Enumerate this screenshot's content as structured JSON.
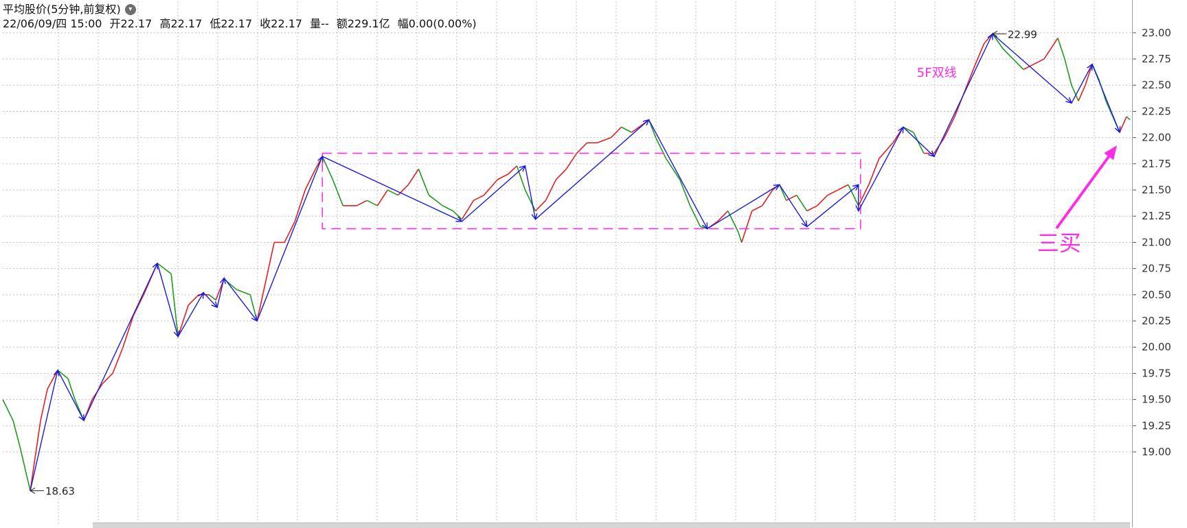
{
  "header": {
    "title": "平均股价(5分钟,前复权)",
    "date": "22/06/09/四 15:00",
    "open": "开22.17",
    "high": "高22.17",
    "low": "低22.17",
    "close": "收22.17",
    "volume": "量--",
    "amount": "额229.1亿",
    "change": "幅0.00(0.00%)"
  },
  "colors": {
    "up": "#e02020",
    "down": "#1e9a1e",
    "stroke": "#1a1adf",
    "annotation": "#ff2ce6",
    "grid": "#bdbdbd"
  },
  "chart_data": {
    "type": "line",
    "ylim": [
      18.3,
      23.3
    ],
    "xlim": [
      0,
      1640
    ],
    "y_ticks": [
      19.0,
      19.25,
      19.5,
      19.75,
      20.0,
      20.25,
      20.5,
      20.75,
      21.0,
      21.25,
      21.5,
      21.75,
      22.0,
      22.25,
      22.5,
      22.75,
      23.0
    ],
    "grid": true,
    "series": [
      {
        "points": [
          [
            0,
            19.5
          ],
          [
            15,
            19.3
          ],
          [
            25,
            19.05
          ],
          [
            40,
            18.63
          ],
          [
            55,
            19.3
          ],
          [
            65,
            19.6
          ],
          [
            80,
            19.78
          ],
          [
            95,
            19.7
          ],
          [
            105,
            19.5
          ],
          [
            118,
            19.3
          ],
          [
            130,
            19.5
          ],
          [
            145,
            19.65
          ],
          [
            160,
            19.75
          ],
          [
            175,
            20.0
          ],
          [
            190,
            20.3
          ],
          [
            205,
            20.5
          ],
          [
            225,
            20.8
          ],
          [
            245,
            20.7
          ],
          [
            255,
            20.1
          ],
          [
            270,
            20.4
          ],
          [
            285,
            20.5
          ],
          [
            300,
            20.5
          ],
          [
            310,
            20.45
          ],
          [
            322,
            20.65
          ],
          [
            340,
            20.55
          ],
          [
            360,
            20.5
          ],
          [
            370,
            20.25
          ],
          [
            385,
            20.7
          ],
          [
            395,
            21.0
          ],
          [
            410,
            21.0
          ],
          [
            425,
            21.2
          ],
          [
            440,
            21.5
          ],
          [
            455,
            21.7
          ],
          [
            465,
            21.82
          ],
          [
            480,
            21.6
          ],
          [
            495,
            21.35
          ],
          [
            515,
            21.35
          ],
          [
            530,
            21.4
          ],
          [
            545,
            21.35
          ],
          [
            560,
            21.5
          ],
          [
            575,
            21.45
          ],
          [
            590,
            21.55
          ],
          [
            605,
            21.7
          ],
          [
            620,
            21.45
          ],
          [
            640,
            21.35
          ],
          [
            655,
            21.3
          ],
          [
            668,
            21.22
          ],
          [
            685,
            21.4
          ],
          [
            700,
            21.45
          ],
          [
            720,
            21.6
          ],
          [
            735,
            21.65
          ],
          [
            748,
            21.73
          ],
          [
            760,
            21.5
          ],
          [
            775,
            21.3
          ],
          [
            790,
            21.4
          ],
          [
            805,
            21.6
          ],
          [
            820,
            21.7
          ],
          [
            835,
            21.85
          ],
          [
            850,
            21.95
          ],
          [
            865,
            21.95
          ],
          [
            885,
            22.0
          ],
          [
            900,
            22.1
          ],
          [
            915,
            22.05
          ],
          [
            930,
            22.12
          ],
          [
            940,
            22.17
          ],
          [
            950,
            22.0
          ],
          [
            965,
            21.8
          ],
          [
            985,
            21.6
          ],
          [
            1000,
            21.35
          ],
          [
            1015,
            21.15
          ],
          [
            1025,
            21.13
          ],
          [
            1040,
            21.2
          ],
          [
            1055,
            21.3
          ],
          [
            1070,
            21.1
          ],
          [
            1075,
            21.0
          ],
          [
            1090,
            21.3
          ],
          [
            1105,
            21.35
          ],
          [
            1120,
            21.5
          ],
          [
            1130,
            21.55
          ],
          [
            1140,
            21.4
          ],
          [
            1155,
            21.45
          ],
          [
            1170,
            21.3
          ],
          [
            1185,
            21.35
          ],
          [
            1200,
            21.45
          ],
          [
            1215,
            21.5
          ],
          [
            1230,
            21.55
          ],
          [
            1245,
            21.35
          ],
          [
            1260,
            21.55
          ],
          [
            1275,
            21.8
          ],
          [
            1295,
            21.95
          ],
          [
            1310,
            22.1
          ],
          [
            1325,
            22.05
          ],
          [
            1340,
            21.85
          ],
          [
            1355,
            21.85
          ],
          [
            1370,
            22.0
          ],
          [
            1385,
            22.2
          ],
          [
            1400,
            22.45
          ],
          [
            1415,
            22.7
          ],
          [
            1428,
            22.9
          ],
          [
            1440,
            22.99
          ],
          [
            1455,
            22.85
          ],
          [
            1470,
            22.75
          ],
          [
            1485,
            22.65
          ],
          [
            1500,
            22.7
          ],
          [
            1515,
            22.75
          ],
          [
            1525,
            22.85
          ],
          [
            1535,
            22.95
          ],
          [
            1545,
            22.75
          ],
          [
            1555,
            22.5
          ],
          [
            1565,
            22.35
          ],
          [
            1575,
            22.5
          ],
          [
            1585,
            22.7
          ],
          [
            1595,
            22.55
          ],
          [
            1605,
            22.35
          ],
          [
            1615,
            22.2
          ],
          [
            1625,
            22.05
          ],
          [
            1635,
            22.2
          ],
          [
            1640,
            22.17
          ]
        ]
      }
    ],
    "stroke_path": [
      [
        40,
        18.63
      ],
      [
        80,
        19.78
      ],
      [
        118,
        19.3
      ],
      [
        225,
        20.8
      ],
      [
        255,
        20.1
      ],
      [
        292,
        20.52
      ],
      [
        312,
        20.38
      ],
      [
        322,
        20.66
      ],
      [
        370,
        20.25
      ],
      [
        465,
        21.82
      ],
      [
        668,
        21.2
      ],
      [
        760,
        21.73
      ],
      [
        775,
        21.22
      ],
      [
        940,
        22.17
      ],
      [
        1025,
        21.13
      ],
      [
        1130,
        21.55
      ],
      [
        1170,
        21.15
      ],
      [
        1245,
        21.55
      ],
      [
        1245,
        21.3
      ],
      [
        1310,
        22.1
      ],
      [
        1355,
        21.82
      ],
      [
        1440,
        22.99
      ],
      [
        1555,
        22.33
      ],
      [
        1585,
        22.7
      ],
      [
        1625,
        22.05
      ]
    ],
    "markers": [
      {
        "x": 40,
        "y": 18.63,
        "label": "18.63"
      },
      {
        "x": 1440,
        "y": 22.99,
        "label": "22.99"
      }
    ],
    "box": {
      "x0": 465,
      "x1": 1248,
      "y0": 21.13,
      "y1": 21.85
    },
    "annotations": [
      {
        "text": "5F双线",
        "x": 1330,
        "y": 22.58
      },
      {
        "text": "三买",
        "x": 1505,
        "y": 20.92
      }
    ]
  }
}
